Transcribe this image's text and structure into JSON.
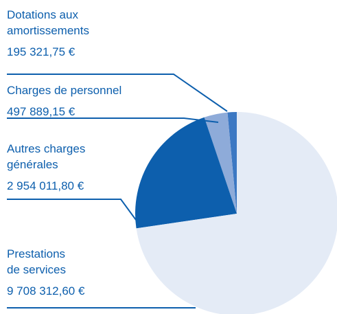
{
  "chart_data": {
    "type": "pie",
    "categories": [
      "Dotations aux\namortissements",
      "Charges de personnel",
      "Autres charges\ngénérales",
      "Prestations\nde services"
    ],
    "values": [
      195321.75,
      497889.15,
      2954011.8,
      9708312.6
    ],
    "value_labels": [
      "195 321,75 €",
      "497 889,15 €",
      "2 954 011,80 €",
      "9 708 312,60 €"
    ],
    "colors": [
      "#3c78c3",
      "#8eabd9",
      "#0d5fad",
      "#e4ebf6"
    ]
  }
}
